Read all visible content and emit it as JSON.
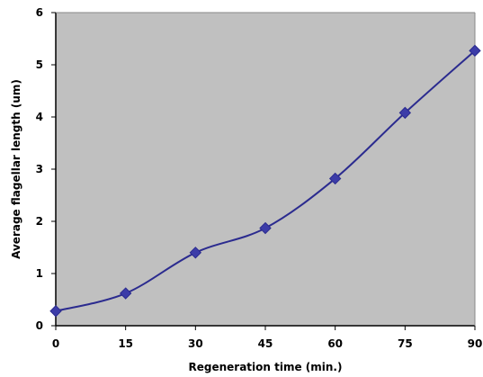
{
  "chart_data": {
    "type": "line",
    "title": "",
    "xlabel": "Regeneration time (min.)",
    "ylabel": "Average flagellar length (um)",
    "x": [
      0,
      15,
      30,
      45,
      60,
      75,
      90
    ],
    "series": [
      {
        "values": [
          0.28,
          0.62,
          1.4,
          1.87,
          2.82,
          4.08,
          5.27
        ]
      }
    ],
    "xlim": [
      0,
      90
    ],
    "ylim": [
      0,
      6
    ],
    "xticks": [
      "0",
      "15",
      "30",
      "45",
      "60",
      "75",
      "90"
    ],
    "yticks": [
      "0",
      "1",
      "2",
      "3",
      "4",
      "5",
      "6"
    ],
    "grid": false,
    "legend": "none",
    "colors": {
      "plot_background": "#c0c0c0",
      "line": "#2b2b8f",
      "marker": "#3c3ca8"
    }
  }
}
